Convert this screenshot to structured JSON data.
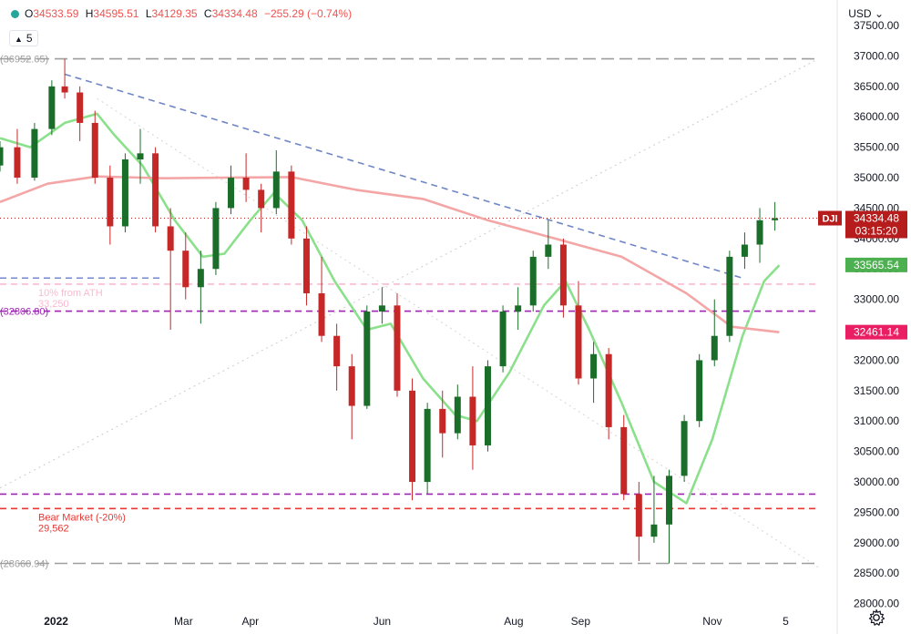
{
  "header": {
    "open_label": "O",
    "open": "34533.59",
    "high_label": "H",
    "high": "34595.51",
    "low_label": "L",
    "low": "34129.35",
    "close_label": "C",
    "close": "34334.48",
    "change": "−255.29 (−0.74%)",
    "interval": "5",
    "currency": "USD",
    "colors": {
      "down": "#ef5350",
      "up": "#26a69a",
      "dot": "#26a69a"
    }
  },
  "chart_data": {
    "type": "candlestick",
    "symbol": "DJI",
    "y_axis": {
      "range": [
        27800,
        37800
      ],
      "ticks": [
        "37500.00",
        "37000.00",
        "36500.00",
        "36000.00",
        "35500.00",
        "35000.00",
        "34500.00",
        "34000.00",
        "33500.00",
        "33000.00",
        "32500.00",
        "32000.00",
        "31500.00",
        "31000.00",
        "30500.00",
        "30000.00",
        "29500.00",
        "29000.00",
        "28500.00",
        "28000.00"
      ]
    },
    "x_axis": {
      "labels": [
        "2022",
        "Mar",
        "Apr",
        "Jun",
        "Aug",
        "Sep",
        "Nov",
        "5"
      ],
      "label_dates": [
        "2022-01-01",
        "2022-03-01",
        "2022-04-01",
        "2022-06-01",
        "2022-08-01",
        "2022-09-01",
        "2022-11-01",
        "2022-12-05"
      ],
      "range": [
        "2021-12-06",
        "2022-12-20"
      ]
    },
    "price_tags": [
      {
        "label": "DJI",
        "value": "34334.48",
        "sub": "03:15:20",
        "color": "#b71c1c"
      },
      {
        "value": "33565.54",
        "color": "#4caf50"
      },
      {
        "value": "32461.14",
        "color": "#e91e63"
      }
    ],
    "horizontal_levels": [
      {
        "value": 36952.65,
        "label": "(36952.65)",
        "color": "#9e9e9e",
        "style": "long-dash"
      },
      {
        "value": 33250,
        "label_lines": [
          "10% from ATH",
          "33,250"
        ],
        "color": "#f8bbd0",
        "style": "dash"
      },
      {
        "value": 32806.8,
        "label": "(32806.80)",
        "color": "#9c27b0",
        "style": "dash"
      },
      {
        "value": 29800,
        "color": "#9c27b0",
        "style": "dash"
      },
      {
        "value": 29562,
        "label_lines": [
          "Bear Market (-20%)",
          "29,562"
        ],
        "color": "#e53935",
        "style": "dash"
      },
      {
        "value": 28660.94,
        "label": "(28660.94)",
        "color": "#9e9e9e",
        "style": "long-dash"
      },
      {
        "value": 33350,
        "color": "#7986cb",
        "style": "dash",
        "partial": true
      }
    ],
    "trendlines": [
      {
        "from": [
          "2022-01-05",
          36700
        ],
        "to": [
          "2022-11-15",
          33350
        ],
        "color": "#6f86c6",
        "style": "dash"
      },
      {
        "from": [
          "2021-12-06",
          29900
        ],
        "to": [
          "2022-12-20",
          36950
        ],
        "color": "#cccccc",
        "style": "dot"
      },
      {
        "from": [
          "2022-01-20",
          36300
        ],
        "to": [
          "2022-12-20",
          28600
        ],
        "color": "#d5d5d5",
        "style": "dot"
      }
    ],
    "current_price": 34334.48,
    "series": [
      {
        "name": "ma_fast",
        "color": "#8be08b",
        "points": [
          [
            "2021-12-06",
            35650
          ],
          [
            "2021-12-20",
            35500
          ],
          [
            "2022-01-05",
            35900
          ],
          [
            "2022-01-20",
            36050
          ],
          [
            "2022-01-28",
            35700
          ],
          [
            "2022-02-10",
            35200
          ],
          [
            "2022-02-25",
            34300
          ],
          [
            "2022-03-10",
            33700
          ],
          [
            "2022-03-20",
            33750
          ],
          [
            "2022-04-01",
            34300
          ],
          [
            "2022-04-12",
            34750
          ],
          [
            "2022-04-25",
            34300
          ],
          [
            "2022-05-10",
            33300
          ],
          [
            "2022-05-25",
            32500
          ],
          [
            "2022-06-05",
            32600
          ],
          [
            "2022-06-20",
            31700
          ],
          [
            "2022-07-05",
            31100
          ],
          [
            "2022-07-15",
            31000
          ],
          [
            "2022-07-30",
            31800
          ],
          [
            "2022-08-15",
            32900
          ],
          [
            "2022-08-25",
            33300
          ],
          [
            "2022-09-05",
            32500
          ],
          [
            "2022-09-20",
            31300
          ],
          [
            "2022-10-05",
            30000
          ],
          [
            "2022-10-20",
            29650
          ],
          [
            "2022-11-01",
            30700
          ],
          [
            "2022-11-15",
            32400
          ],
          [
            "2022-11-25",
            33300
          ],
          [
            "2022-12-02",
            33560
          ]
        ]
      },
      {
        "name": "ma_slow",
        "color": "#f4a6a6",
        "points": [
          [
            "2021-12-06",
            34600
          ],
          [
            "2021-12-28",
            34900
          ],
          [
            "2022-01-20",
            35020
          ],
          [
            "2022-02-20",
            34990
          ],
          [
            "2022-03-20",
            35000
          ],
          [
            "2022-04-20",
            35010
          ],
          [
            "2022-05-20",
            34800
          ],
          [
            "2022-06-20",
            34650
          ],
          [
            "2022-07-20",
            34300
          ],
          [
            "2022-08-20",
            34000
          ],
          [
            "2022-09-20",
            33700
          ],
          [
            "2022-10-20",
            33100
          ],
          [
            "2022-11-10",
            32550
          ],
          [
            "2022-12-02",
            32460
          ]
        ]
      },
      {
        "name": "price",
        "type": "candles",
        "ohlc": [
          [
            "2021-12-06",
            35200,
            35600,
            35100,
            35500
          ],
          [
            "2021-12-14",
            35500,
            35800,
            34900,
            35000
          ],
          [
            "2021-12-22",
            35000,
            35900,
            34950,
            35800
          ],
          [
            "2021-12-30",
            35800,
            36600,
            35700,
            36500
          ],
          [
            "2022-01-05",
            36500,
            36950,
            36300,
            36400
          ],
          [
            "2022-01-12",
            36400,
            36500,
            35600,
            35900
          ],
          [
            "2022-01-19",
            35900,
            36100,
            34900,
            35000
          ],
          [
            "2022-01-26",
            35000,
            35200,
            33900,
            34200
          ],
          [
            "2022-02-02",
            34200,
            35400,
            34100,
            35300
          ],
          [
            "2022-02-09",
            35300,
            35800,
            34900,
            35400
          ],
          [
            "2022-02-16",
            35400,
            35500,
            34100,
            34200
          ],
          [
            "2022-02-23",
            34200,
            34500,
            32500,
            33800
          ],
          [
            "2022-03-02",
            33800,
            34100,
            33000,
            33200
          ],
          [
            "2022-03-09",
            33200,
            33800,
            32600,
            33500
          ],
          [
            "2022-03-16",
            33500,
            34600,
            33400,
            34500
          ],
          [
            "2022-03-23",
            34500,
            35200,
            34400,
            35000
          ],
          [
            "2022-03-30",
            35000,
            35400,
            34600,
            34800
          ],
          [
            "2022-04-06",
            34800,
            34900,
            34100,
            34500
          ],
          [
            "2022-04-13",
            34500,
            35450,
            34400,
            35100
          ],
          [
            "2022-04-20",
            35100,
            35200,
            33900,
            34000
          ],
          [
            "2022-04-27",
            34000,
            34200,
            32900,
            33100
          ],
          [
            "2022-05-04",
            33100,
            33700,
            32300,
            32400
          ],
          [
            "2022-05-11",
            32400,
            32600,
            31500,
            31900
          ],
          [
            "2022-05-18",
            31900,
            32100,
            30700,
            31250
          ],
          [
            "2022-05-25",
            31250,
            32900,
            31200,
            32800
          ],
          [
            "2022-06-01",
            32800,
            33200,
            32600,
            32900
          ],
          [
            "2022-06-08",
            32900,
            33100,
            31400,
            31500
          ],
          [
            "2022-06-15",
            31500,
            31700,
            29700,
            30000
          ],
          [
            "2022-06-22",
            30000,
            31300,
            29800,
            31200
          ],
          [
            "2022-06-29",
            31200,
            31500,
            30400,
            30800
          ],
          [
            "2022-07-06",
            30800,
            31600,
            30700,
            31400
          ],
          [
            "2022-07-13",
            31400,
            31900,
            30200,
            30600
          ],
          [
            "2022-07-20",
            30600,
            32000,
            30500,
            31900
          ],
          [
            "2022-07-27",
            31900,
            32900,
            31800,
            32800
          ],
          [
            "2022-08-03",
            32800,
            33200,
            32500,
            32900
          ],
          [
            "2022-08-10",
            32900,
            33800,
            32800,
            33700
          ],
          [
            "2022-08-17",
            33700,
            34300,
            33500,
            33900
          ],
          [
            "2022-08-24",
            33900,
            34000,
            32700,
            32900
          ],
          [
            "2022-08-31",
            32900,
            33300,
            31600,
            31700
          ],
          [
            "2022-09-07",
            31700,
            32300,
            31300,
            32100
          ],
          [
            "2022-09-14",
            32100,
            32200,
            30700,
            30900
          ],
          [
            "2022-09-21",
            30900,
            31100,
            29700,
            29800
          ],
          [
            "2022-09-28",
            29800,
            30000,
            28700,
            29100
          ],
          [
            "2022-10-05",
            29100,
            30100,
            29000,
            29300
          ],
          [
            "2022-10-12",
            29300,
            30200,
            28660,
            30100
          ],
          [
            "2022-10-19",
            30100,
            31100,
            30000,
            31000
          ],
          [
            "2022-10-26",
            31000,
            32100,
            30900,
            32000
          ],
          [
            "2022-11-02",
            32000,
            33000,
            31900,
            32400
          ],
          [
            "2022-11-09",
            32400,
            33800,
            32300,
            33700
          ],
          [
            "2022-11-16",
            33700,
            34100,
            33500,
            33900
          ],
          [
            "2022-11-23",
            33900,
            34500,
            33600,
            34300
          ],
          [
            "2022-11-30",
            34300,
            34600,
            34130,
            34334
          ]
        ]
      }
    ]
  }
}
